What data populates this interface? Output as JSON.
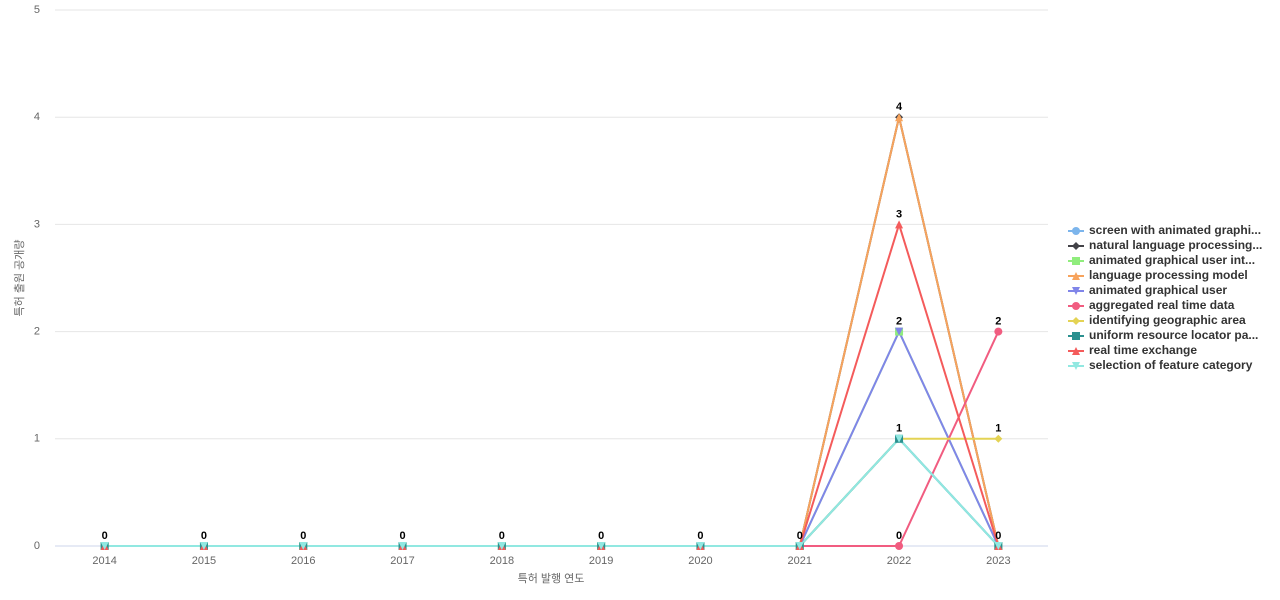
{
  "chart_data": {
    "type": "line",
    "x_label": "특허 발행 연도",
    "y_label": "특허 출원 공개량",
    "categories": [
      "2014",
      "2015",
      "2016",
      "2017",
      "2018",
      "2019",
      "2020",
      "2021",
      "2022",
      "2023"
    ],
    "ylim": [
      0,
      5
    ],
    "yticks": [
      0,
      1,
      2,
      3,
      4,
      5
    ],
    "grid": true,
    "legend": "right",
    "series": [
      {
        "name": "screen with animated graphi...",
        "color": "#7cb5ec",
        "marker": "circle",
        "values": [
          0,
          0,
          0,
          0,
          0,
          0,
          0,
          0,
          1,
          0
        ]
      },
      {
        "name": "natural language processing...",
        "color": "#434348",
        "marker": "diamond",
        "values": [
          0,
          0,
          0,
          0,
          0,
          0,
          0,
          0,
          4,
          0
        ]
      },
      {
        "name": "animated graphical user int...",
        "color": "#90ed7d",
        "marker": "square",
        "values": [
          0,
          0,
          0,
          0,
          0,
          0,
          0,
          0,
          2,
          0
        ]
      },
      {
        "name": "language processing model",
        "color": "#f7a35c",
        "marker": "triangle",
        "values": [
          0,
          0,
          0,
          0,
          0,
          0,
          0,
          0,
          4,
          0
        ]
      },
      {
        "name": "animated graphical user",
        "color": "#8085e9",
        "marker": "triangle-down",
        "values": [
          0,
          0,
          0,
          0,
          0,
          0,
          0,
          0,
          2,
          0
        ]
      },
      {
        "name": "aggregated real time data",
        "color": "#f15c80",
        "marker": "circle",
        "values": [
          0,
          0,
          0,
          0,
          0,
          0,
          0,
          0,
          0,
          2
        ]
      },
      {
        "name": "identifying geographic area",
        "color": "#e4d354",
        "marker": "diamond",
        "values": [
          0,
          0,
          0,
          0,
          0,
          0,
          0,
          0,
          1,
          1
        ]
      },
      {
        "name": "uniform resource locator pa...",
        "color": "#2b908f",
        "marker": "square",
        "values": [
          0,
          0,
          0,
          0,
          0,
          0,
          0,
          0,
          1,
          0
        ]
      },
      {
        "name": "real time exchange",
        "color": "#f45b5b",
        "marker": "triangle",
        "values": [
          0,
          0,
          0,
          0,
          0,
          0,
          0,
          0,
          3,
          0
        ]
      },
      {
        "name": "selection of feature category",
        "color": "#91e8e1",
        "marker": "triangle-down",
        "values": [
          0,
          0,
          0,
          0,
          0,
          0,
          0,
          0,
          1,
          0
        ]
      }
    ]
  }
}
